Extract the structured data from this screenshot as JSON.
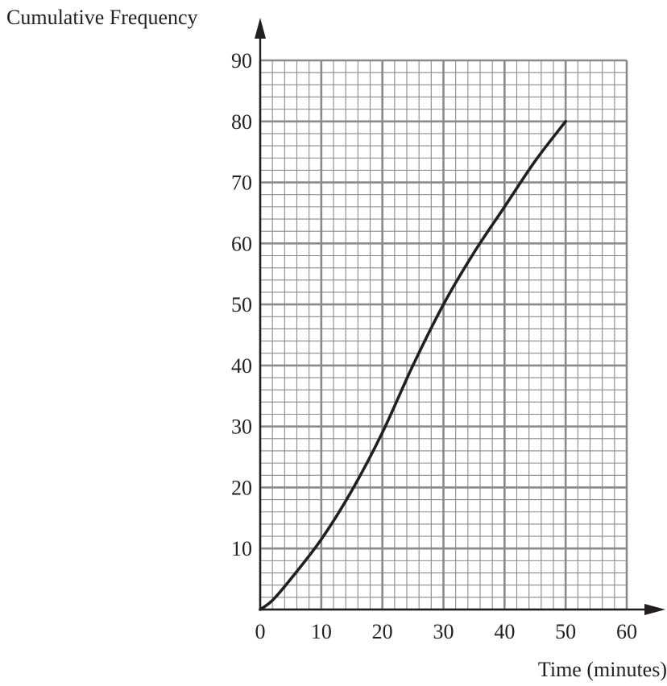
{
  "chart_data": {
    "type": "line",
    "title": "",
    "ylabel": "Cumulative Frequency",
    "xlabel": "Time (minutes)",
    "xlim": [
      0,
      60
    ],
    "ylim": [
      0,
      90
    ],
    "x_ticks": [
      "0",
      "10",
      "20",
      "30",
      "40",
      "50",
      "60"
    ],
    "y_ticks": [
      "10",
      "20",
      "30",
      "40",
      "50",
      "60",
      "70",
      "80",
      "90"
    ],
    "grid": true,
    "minor_grid_step": 2,
    "major_grid_step": 10,
    "series": [
      {
        "x": [
          0,
          2,
          5,
          10,
          15,
          20,
          25,
          30,
          35,
          40,
          45,
          50
        ],
        "y": [
          0,
          1.5,
          5,
          11.5,
          19.5,
          29,
          40,
          50,
          58.5,
          66,
          73.5,
          80
        ]
      }
    ],
    "colors": {
      "minor_grid": "#8a8a8a",
      "major_grid": "#8a8a8a",
      "curve": "#231f20",
      "text": "#231f20"
    }
  }
}
